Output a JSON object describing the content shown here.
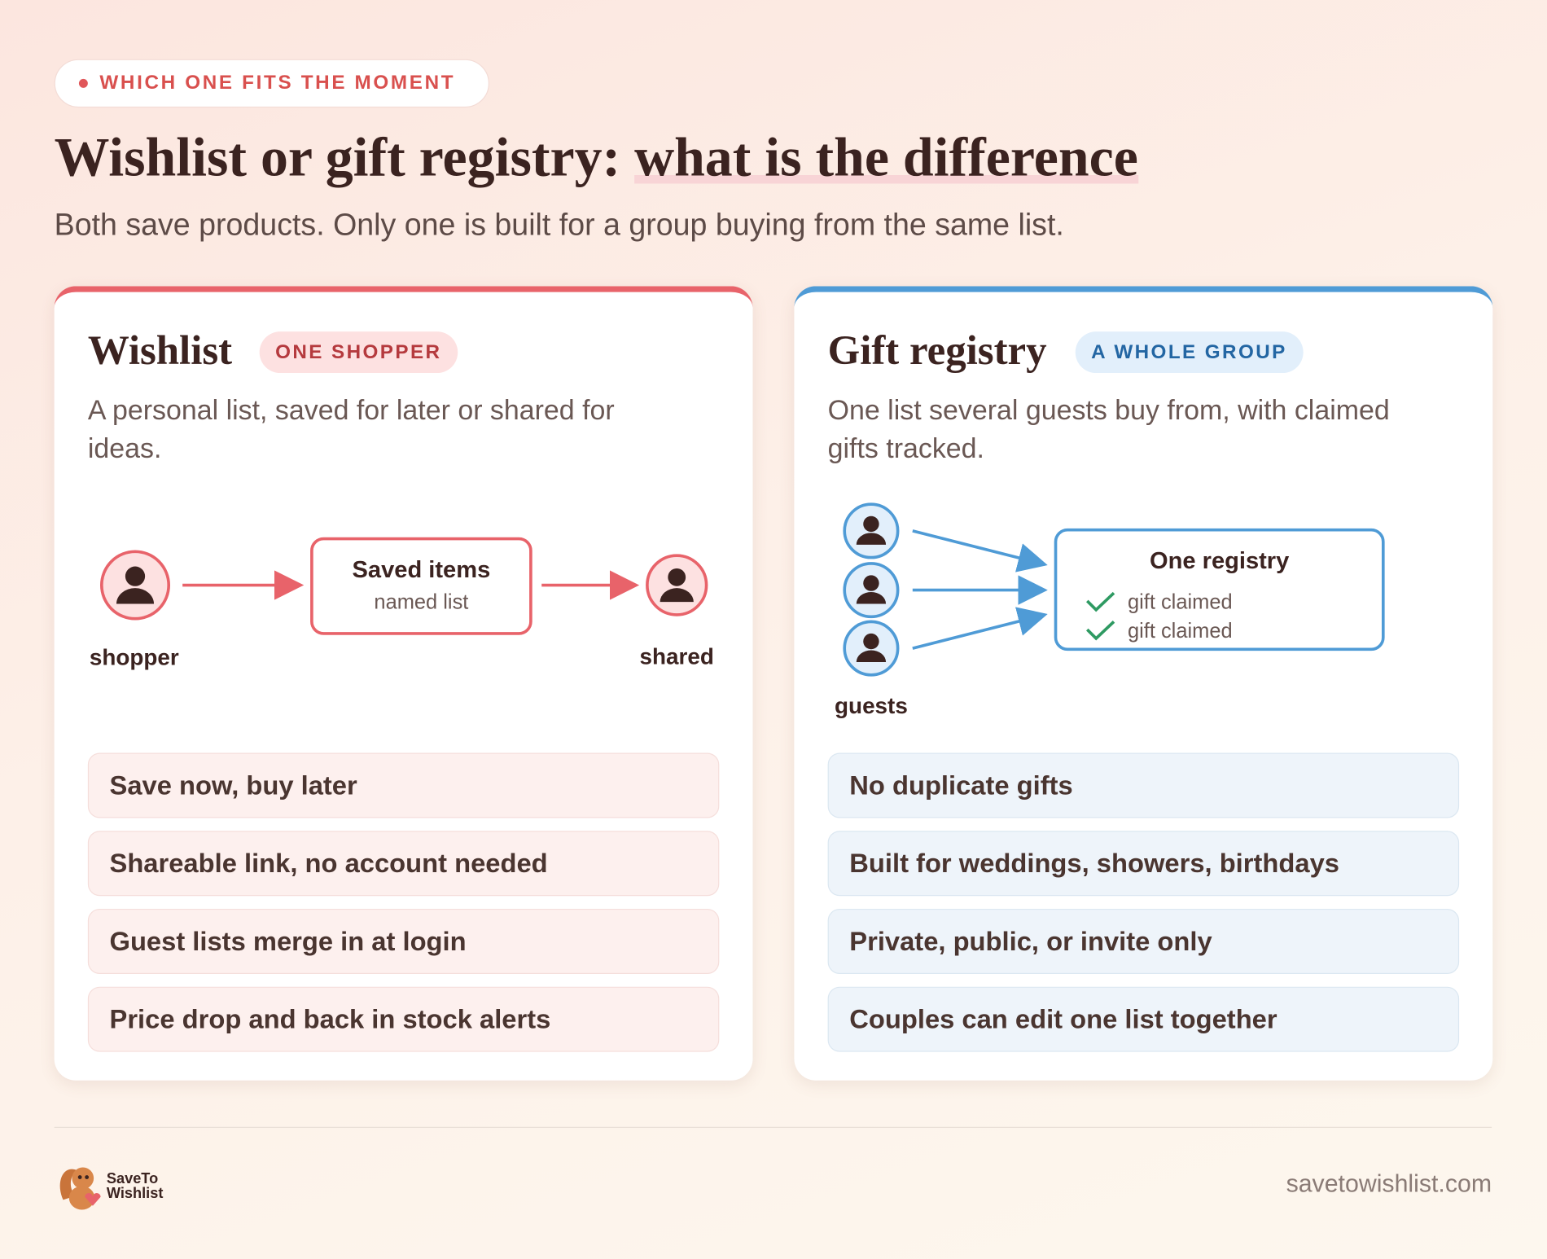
{
  "eyebrow": "WHICH ONE FITS THE MOMENT",
  "title": {
    "lead": "Wishlist or gift registry:",
    "highlight": "what is the difference"
  },
  "subtitle": "Both save products. Only one is built for a group buying from the same list.",
  "cards": [
    {
      "title": "Wishlist",
      "badge": "ONE SHOPPER",
      "description": "A personal list, saved for later or shared for ideas.",
      "diagram": {
        "from": "shopper",
        "box_title": "Saved items",
        "box_subtitle": "named list",
        "to": "shared"
      },
      "features": [
        "Save now, buy later",
        "Shareable link, no account needed",
        "Guest lists merge in at login",
        "Price drop and back in stock alerts"
      ]
    },
    {
      "title": "Gift registry",
      "badge": "A WHOLE GROUP",
      "description": "One list several guests buy from, with claimed gifts tracked.",
      "diagram": {
        "from": "guests",
        "box_title": "One registry",
        "items": [
          "gift claimed",
          "gift claimed"
        ]
      },
      "features": [
        "No duplicate gifts",
        "Built for weddings, showers, birthdays",
        "Private, public, or invite only",
        "Couples can edit one list together"
      ]
    }
  ],
  "footer": {
    "brand": [
      "SaveTo",
      "Wishlist"
    ],
    "url": "savetowishlist.com"
  }
}
